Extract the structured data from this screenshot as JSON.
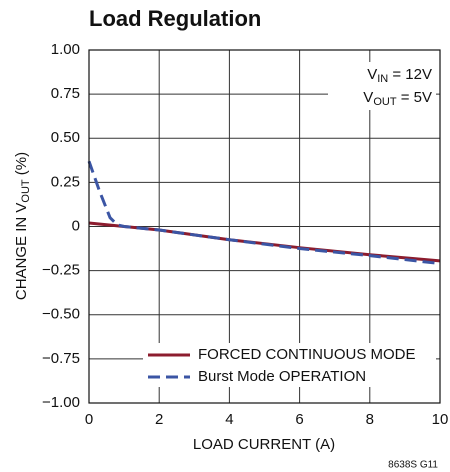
{
  "chart_data": {
    "type": "line",
    "title": "Load Regulation",
    "xlabel": "LOAD CURRENT (A)",
    "ylabel": [
      "CHANGE IN V",
      "OUT",
      " (%)"
    ],
    "annotation": [
      [
        "V",
        "IN",
        " = 12V"
      ],
      [
        "V",
        "OUT",
        " = 5V"
      ]
    ],
    "figure_code": "8638S G11",
    "xlim": [
      0,
      10
    ],
    "xticks": [
      0,
      2,
      4,
      6,
      8,
      10
    ],
    "ylim": [
      -1,
      1
    ],
    "yticks": [
      {
        "value": -1,
        "label": "−1.00"
      },
      {
        "value": -0.75,
        "label": "−0.75"
      },
      {
        "value": -0.5,
        "label": "−0.50"
      },
      {
        "value": -0.25,
        "label": "−0.25"
      },
      0,
      {
        "value": 0.25,
        "label": "0.25"
      },
      {
        "value": 0.5,
        "label": "0.50"
      },
      {
        "value": 0.75,
        "label": "0.75"
      },
      {
        "value": 1,
        "label": "1.00"
      }
    ],
    "grid": true,
    "legend": "lower right",
    "series": [
      {
        "name": "FORCED CONTINUOUS MODE",
        "color": "#8c1c2e",
        "dash": false,
        "x": [
          0,
          1,
          2,
          4,
          6,
          8,
          10
        ],
        "values": [
          0.02,
          0.0,
          -0.02,
          -0.075,
          -0.12,
          -0.16,
          -0.195
        ]
      },
      {
        "name": "Burst Mode OPERATION",
        "color": "#3b55a4",
        "dash": true,
        "x": [
          0,
          0.3,
          0.6,
          0.8,
          1,
          2,
          4,
          6,
          8,
          10
        ],
        "values": [
          0.37,
          0.2,
          0.05,
          0.01,
          0.0,
          -0.02,
          -0.075,
          -0.125,
          -0.165,
          -0.21
        ]
      }
    ]
  }
}
